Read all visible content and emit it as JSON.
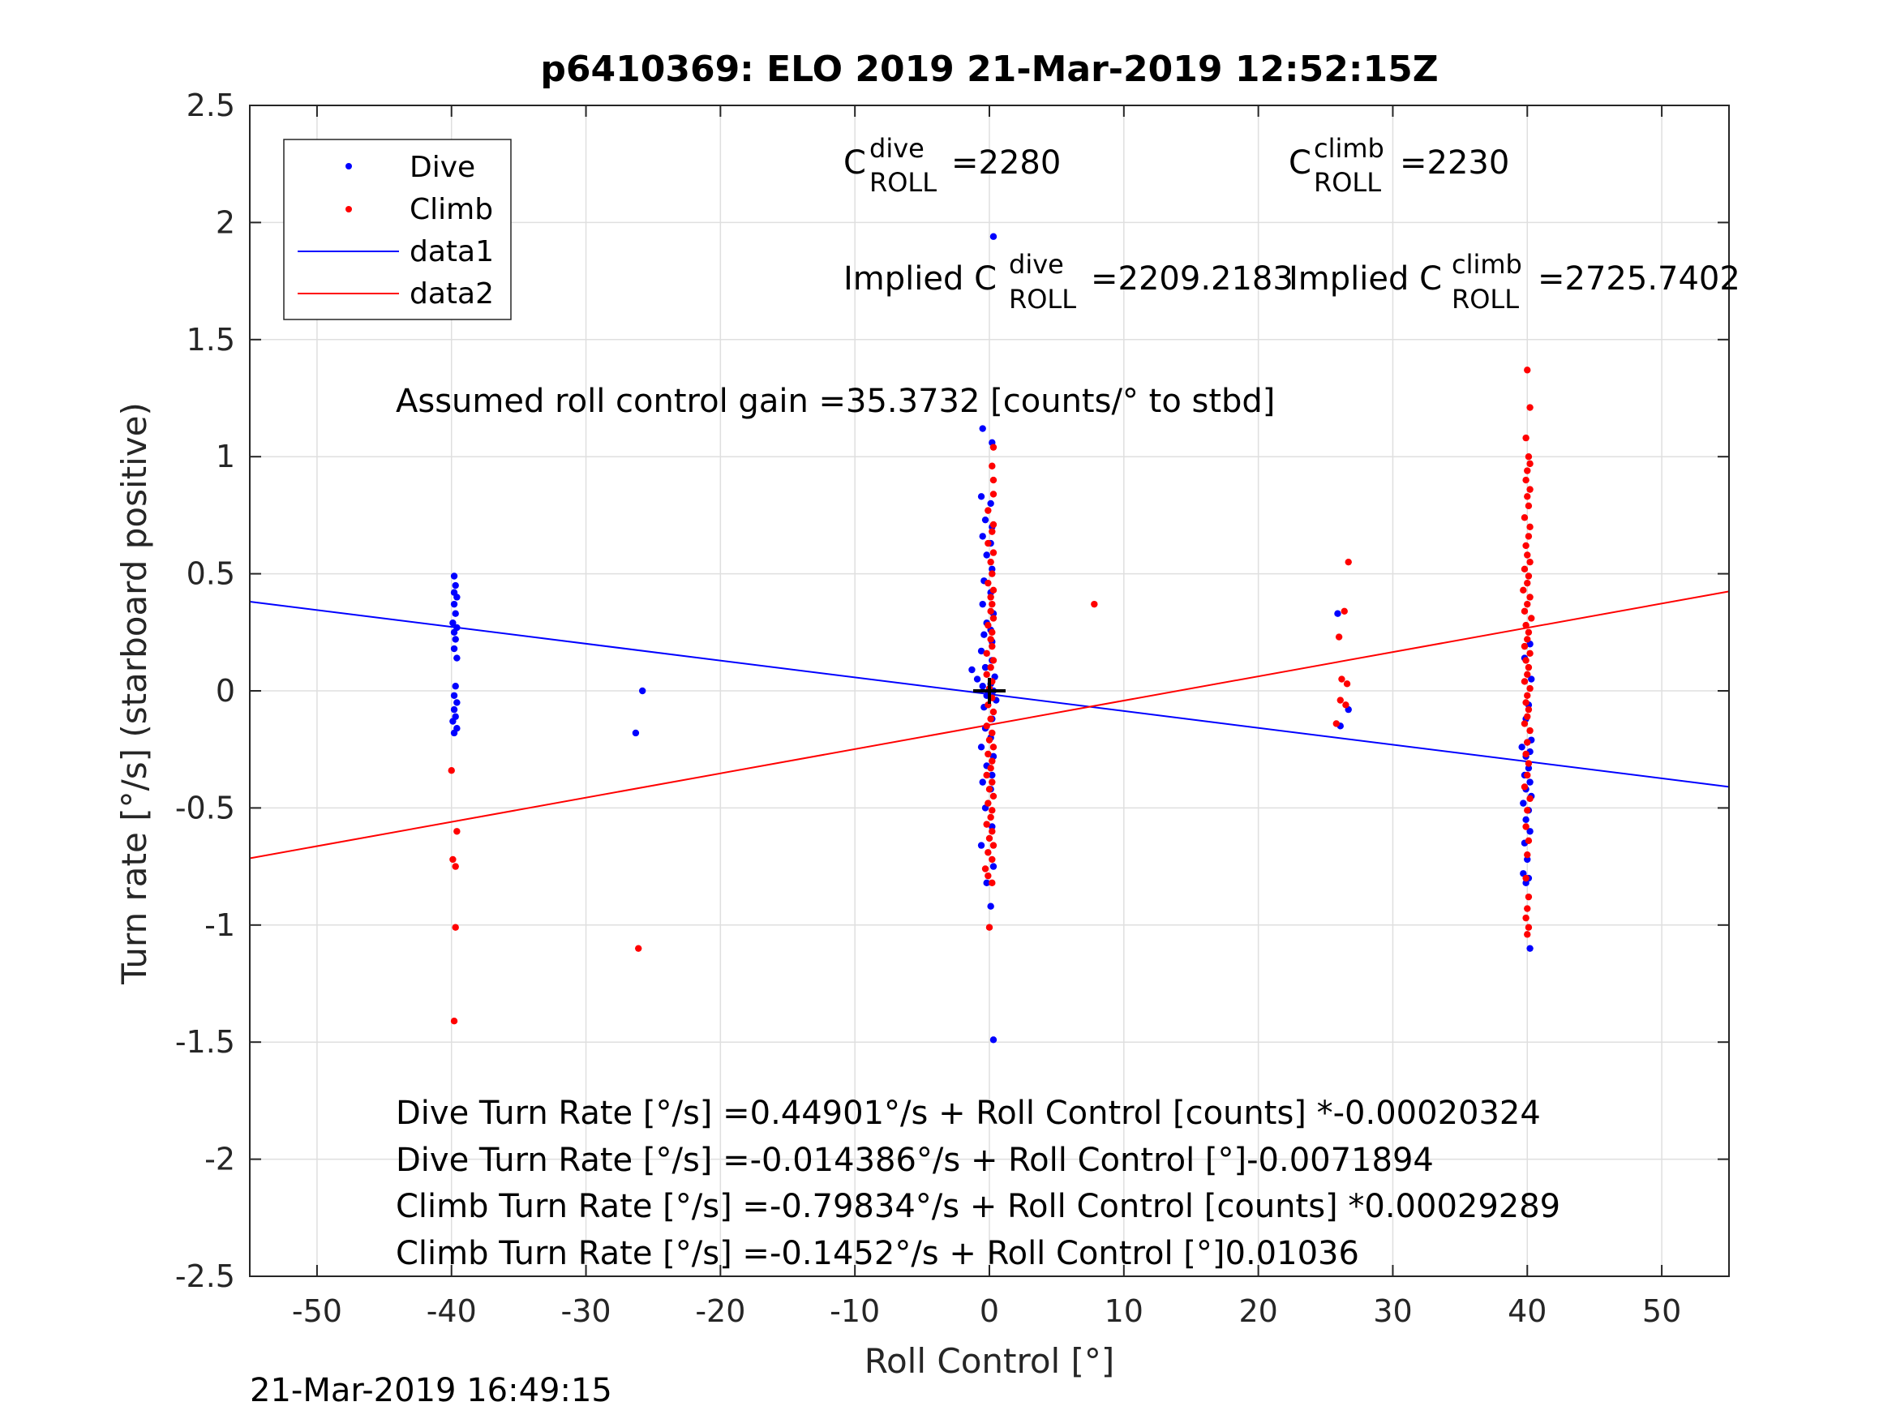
{
  "chart_data": {
    "type": "scatter",
    "title": "p6410369: ELO 2019 21-Mar-2019 12:52:15Z",
    "xlabel": "Roll Control [°]",
    "ylabel": "Turn rate [°/s] (starboard positive)",
    "xlim": [
      -55,
      55
    ],
    "ylim": [
      -2.5,
      2.5
    ],
    "xticks": [
      -50,
      -40,
      -30,
      -20,
      -10,
      0,
      10,
      20,
      30,
      40,
      50
    ],
    "yticks": [
      2.5,
      2,
      1.5,
      1,
      0.5,
      0,
      -0.5,
      -1,
      -1.5,
      -2,
      -2.5
    ],
    "grid": true,
    "legend": {
      "position": "top-left",
      "entries": [
        {
          "label": "Dive",
          "color": "#0000ff",
          "marker": "dot"
        },
        {
          "label": "Climb",
          "color": "#ff0000",
          "marker": "dot"
        },
        {
          "label": "data1",
          "color": "#0000ff",
          "marker": "line"
        },
        {
          "label": "data2",
          "color": "#ff0000",
          "marker": "line"
        }
      ]
    },
    "series": [
      {
        "name": "Dive",
        "color": "#0000ff",
        "points": [
          [
            -39.8,
            0.49
          ],
          [
            -39.7,
            0.45
          ],
          [
            -39.8,
            0.42
          ],
          [
            -39.6,
            0.4
          ],
          [
            -39.8,
            0.37
          ],
          [
            -39.7,
            0.33
          ],
          [
            -39.9,
            0.29
          ],
          [
            -39.6,
            0.27
          ],
          [
            -39.8,
            0.25
          ],
          [
            -39.7,
            0.22
          ],
          [
            -39.8,
            0.18
          ],
          [
            -39.6,
            0.14
          ],
          [
            -39.7,
            0.02
          ],
          [
            -39.8,
            -0.02
          ],
          [
            -39.6,
            -0.05
          ],
          [
            -39.8,
            -0.08
          ],
          [
            -39.7,
            -0.11
          ],
          [
            -39.9,
            -0.13
          ],
          [
            -39.6,
            -0.16
          ],
          [
            -39.8,
            -0.18
          ],
          [
            -25.8,
            0.0
          ],
          [
            -26.3,
            -0.18
          ],
          [
            0.3,
            1.94
          ],
          [
            -0.5,
            1.12
          ],
          [
            0.2,
            1.06
          ],
          [
            -0.6,
            0.83
          ],
          [
            0.1,
            0.8
          ],
          [
            -0.3,
            0.73
          ],
          [
            0.2,
            0.7
          ],
          [
            -0.5,
            0.66
          ],
          [
            0.1,
            0.63
          ],
          [
            -0.2,
            0.58
          ],
          [
            0.2,
            0.52
          ],
          [
            -0.4,
            0.47
          ],
          [
            0.1,
            0.42
          ],
          [
            -0.5,
            0.37
          ],
          [
            0.3,
            0.33
          ],
          [
            -0.2,
            0.29
          ],
          [
            0.1,
            0.26
          ],
          [
            -0.4,
            0.24
          ],
          [
            0.2,
            0.21
          ],
          [
            -0.6,
            0.17
          ],
          [
            0.2,
            0.13
          ],
          [
            -0.3,
            0.1
          ],
          [
            -1.3,
            0.09
          ],
          [
            0.4,
            0.06
          ],
          [
            -0.9,
            0.05
          ],
          [
            0.1,
            0.03
          ],
          [
            -0.5,
            0.02
          ],
          [
            0.3,
            0.0
          ],
          [
            -0.2,
            -0.02
          ],
          [
            0.5,
            -0.04
          ],
          [
            -0.4,
            -0.07
          ],
          [
            0.2,
            -0.12
          ],
          [
            -0.3,
            -0.16
          ],
          [
            0.1,
            -0.2
          ],
          [
            -0.6,
            -0.24
          ],
          [
            0.3,
            -0.28
          ],
          [
            -0.2,
            -0.32
          ],
          [
            0.2,
            -0.36
          ],
          [
            -0.5,
            -0.39
          ],
          [
            0.1,
            -0.42
          ],
          [
            -0.3,
            -0.5
          ],
          [
            0.2,
            -0.58
          ],
          [
            -0.6,
            -0.66
          ],
          [
            0.3,
            -0.75
          ],
          [
            -0.2,
            -0.82
          ],
          [
            0.1,
            -0.92
          ],
          [
            0.3,
            -1.49
          ],
          [
            25.9,
            0.33
          ],
          [
            26.7,
            -0.08
          ],
          [
            26.1,
            -0.15
          ],
          [
            40.2,
            0.2
          ],
          [
            39.8,
            0.14
          ],
          [
            40.3,
            0.05
          ],
          [
            40.1,
            -0.06
          ],
          [
            39.9,
            -0.12
          ],
          [
            40.3,
            -0.21
          ],
          [
            40.0,
            -0.22
          ],
          [
            39.6,
            -0.24
          ],
          [
            40.2,
            -0.26
          ],
          [
            39.9,
            -0.28
          ],
          [
            40.1,
            -0.33
          ],
          [
            39.8,
            -0.36
          ],
          [
            40.2,
            -0.39
          ],
          [
            39.9,
            -0.42
          ],
          [
            40.3,
            -0.45
          ],
          [
            39.7,
            -0.48
          ],
          [
            40.1,
            -0.51
          ],
          [
            39.9,
            -0.55
          ],
          [
            40.2,
            -0.6
          ],
          [
            39.8,
            -0.65
          ],
          [
            40.0,
            -0.72
          ],
          [
            39.7,
            -0.78
          ],
          [
            40.1,
            -0.8
          ],
          [
            39.9,
            -0.82
          ],
          [
            40.2,
            -1.1
          ]
        ]
      },
      {
        "name": "Climb",
        "color": "#ff0000",
        "points": [
          [
            -40.0,
            -0.34
          ],
          [
            -39.6,
            -0.6
          ],
          [
            -39.9,
            -0.72
          ],
          [
            -39.7,
            -0.75
          ],
          [
            -39.7,
            -1.01
          ],
          [
            -39.8,
            -1.41
          ],
          [
            -26.1,
            -1.1
          ],
          [
            7.8,
            0.37
          ],
          [
            0.3,
            1.04
          ],
          [
            0.2,
            0.96
          ],
          [
            0.3,
            0.9
          ],
          [
            0.3,
            0.84
          ],
          [
            -0.1,
            0.77
          ],
          [
            0.3,
            0.71
          ],
          [
            0.2,
            0.68
          ],
          [
            -0.1,
            0.63
          ],
          [
            0.3,
            0.59
          ],
          [
            0.1,
            0.55
          ],
          [
            0.2,
            0.5
          ],
          [
            -0.1,
            0.46
          ],
          [
            0.3,
            0.43
          ],
          [
            0.1,
            0.4
          ],
          [
            0.2,
            0.37
          ],
          [
            0.1,
            0.34
          ],
          [
            0.3,
            0.31
          ],
          [
            -0.1,
            0.28
          ],
          [
            0.2,
            0.25
          ],
          [
            0.1,
            0.22
          ],
          [
            0.2,
            0.19
          ],
          [
            -0.2,
            0.16
          ],
          [
            0.3,
            0.13
          ],
          [
            0.1,
            0.1
          ],
          [
            -0.2,
            0.07
          ],
          [
            0.2,
            0.04
          ],
          [
            0.0,
            0.01
          ],
          [
            0.2,
            -0.03
          ],
          [
            -0.1,
            -0.06
          ],
          [
            0.3,
            -0.09
          ],
          [
            0.1,
            -0.12
          ],
          [
            -0.2,
            -0.15
          ],
          [
            0.2,
            -0.18
          ],
          [
            0.0,
            -0.21
          ],
          [
            0.3,
            -0.24
          ],
          [
            -0.1,
            -0.27
          ],
          [
            0.2,
            -0.3
          ],
          [
            0.1,
            -0.33
          ],
          [
            -0.2,
            -0.36
          ],
          [
            0.2,
            -0.39
          ],
          [
            0.0,
            -0.42
          ],
          [
            0.3,
            -0.45
          ],
          [
            -0.1,
            -0.48
          ],
          [
            0.2,
            -0.51
          ],
          [
            0.1,
            -0.54
          ],
          [
            -0.2,
            -0.57
          ],
          [
            0.2,
            -0.6
          ],
          [
            0.0,
            -0.63
          ],
          [
            0.3,
            -0.66
          ],
          [
            -0.1,
            -0.69
          ],
          [
            0.2,
            -0.72
          ],
          [
            -0.3,
            -0.76
          ],
          [
            -0.1,
            -0.79
          ],
          [
            0.2,
            -0.82
          ],
          [
            0.0,
            -1.01
          ],
          [
            26.7,
            0.55
          ],
          [
            26.4,
            0.34
          ],
          [
            26.0,
            0.23
          ],
          [
            26.2,
            0.05
          ],
          [
            26.6,
            0.03
          ],
          [
            26.1,
            -0.04
          ],
          [
            26.5,
            -0.06
          ],
          [
            25.8,
            -0.14
          ],
          [
            40.0,
            1.37
          ],
          [
            40.2,
            1.21
          ],
          [
            39.9,
            1.08
          ],
          [
            40.1,
            1.0
          ],
          [
            40.2,
            0.97
          ],
          [
            40.0,
            0.94
          ],
          [
            39.9,
            0.9
          ],
          [
            40.2,
            0.86
          ],
          [
            40.0,
            0.83
          ],
          [
            40.1,
            0.79
          ],
          [
            39.8,
            0.74
          ],
          [
            40.2,
            0.7
          ],
          [
            40.1,
            0.66
          ],
          [
            39.9,
            0.62
          ],
          [
            40.0,
            0.58
          ],
          [
            40.2,
            0.55
          ],
          [
            39.8,
            0.52
          ],
          [
            40.1,
            0.49
          ],
          [
            40.0,
            0.46
          ],
          [
            39.7,
            0.43
          ],
          [
            40.2,
            0.4
          ],
          [
            40.0,
            0.37
          ],
          [
            39.8,
            0.34
          ],
          [
            40.3,
            0.31
          ],
          [
            39.9,
            0.28
          ],
          [
            40.1,
            0.25
          ],
          [
            40.0,
            0.22
          ],
          [
            39.8,
            0.19
          ],
          [
            40.2,
            0.16
          ],
          [
            39.9,
            0.13
          ],
          [
            40.1,
            0.1
          ],
          [
            40.0,
            0.07
          ],
          [
            39.8,
            0.04
          ],
          [
            40.2,
            0.01
          ],
          [
            40.0,
            -0.02
          ],
          [
            39.9,
            -0.05
          ],
          [
            40.1,
            -0.08
          ],
          [
            40.0,
            -0.11
          ],
          [
            39.8,
            -0.14
          ],
          [
            40.2,
            -0.17
          ],
          [
            40.0,
            -0.22
          ],
          [
            39.9,
            -0.27
          ],
          [
            40.1,
            -0.31
          ],
          [
            40.0,
            -0.36
          ],
          [
            39.8,
            -0.41
          ],
          [
            40.2,
            -0.46
          ],
          [
            40.0,
            -0.51
          ],
          [
            39.9,
            -0.58
          ],
          [
            40.1,
            -0.64
          ],
          [
            40.0,
            -0.7
          ],
          [
            39.9,
            -0.8
          ],
          [
            40.1,
            -0.88
          ],
          [
            40.0,
            -0.93
          ],
          [
            39.9,
            -0.97
          ],
          [
            40.1,
            -1.01
          ],
          [
            40.0,
            -1.04
          ]
        ]
      },
      {
        "name": "data1",
        "color": "#0000ff",
        "type": "line",
        "points": [
          [
            -55,
            0.381
          ],
          [
            55,
            -0.4097
          ]
        ]
      },
      {
        "name": "data2",
        "color": "#ff0000",
        "type": "line",
        "points": [
          [
            -55,
            -0.715
          ],
          [
            55,
            0.4246
          ]
        ]
      }
    ],
    "center_marker": {
      "x": 0,
      "y": 0,
      "color": "#000000"
    },
    "annotations": {
      "c_roll_dive_sym": "C",
      "c_roll_dive_sup": "dive",
      "c_roll_dive_sub": "ROLL",
      "c_roll_dive_val": "=2280",
      "c_roll_climb_sym": "C",
      "c_roll_climb_sup": "climb",
      "c_roll_climb_sub": "ROLL",
      "c_roll_climb_val": "=2230",
      "implied_dive_prefix": "Implied C",
      "implied_dive_sup": "dive",
      "implied_dive_sub": "ROLL",
      "implied_dive_val": "=2209.2183",
      "implied_climb_prefix": "Implied C",
      "implied_climb_sup": "climb",
      "implied_climb_sub": "ROLL",
      "implied_climb_val": "=2725.7402",
      "gain": "Assumed roll control gain =35.3732 [counts/° to stbd]",
      "fit_lines": [
        "Dive Turn Rate [°/s] =0.44901°/s + Roll Control [counts] *-0.00020324",
        "Dive Turn Rate [°/s] =-0.014386°/s + Roll Control [°]-0.0071894",
        "Climb Turn Rate [°/s] =-0.79834°/s + Roll Control [counts] *0.00029289",
        "Climb Turn Rate [°/s] =-0.1452°/s + Roll Control [°]0.01036"
      ]
    }
  },
  "footer": {
    "timestamp": "21-Mar-2019 16:49:15"
  }
}
